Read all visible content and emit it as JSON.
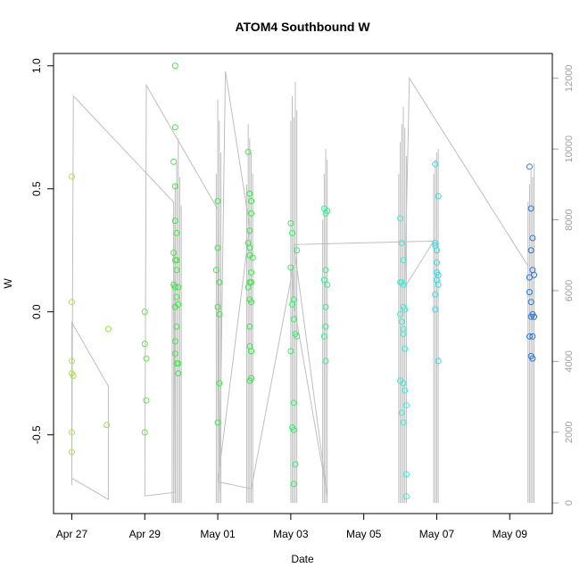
{
  "chart_data": {
    "type": "scatter",
    "title": "ATOM4 Southbound W",
    "xlabel": "Date",
    "ylabel": "W",
    "x_ticks": [
      {
        "date": "2016-04-27",
        "label": "Apr 27"
      },
      {
        "date": "2016-04-29",
        "label": "Apr 29"
      },
      {
        "date": "2016-05-01",
        "label": "May 01"
      },
      {
        "date": "2016-05-03",
        "label": "May 03"
      },
      {
        "date": "2016-05-05",
        "label": "May 05"
      },
      {
        "date": "2016-05-07",
        "label": "May 07"
      },
      {
        "date": "2016-05-09",
        "label": "May 09"
      }
    ],
    "xlim": [
      "2016-04-26 12:00",
      "2016-05-10 04:00"
    ],
    "y_ticks": [
      -0.5,
      0.0,
      0.5,
      1.0
    ],
    "y_tick_labels": [
      "-0.5",
      "0.0",
      "0.5",
      "1.0"
    ],
    "ylim": [
      -0.82,
      1.05
    ],
    "y2_ticks": [
      0,
      2000,
      4000,
      6000,
      8000,
      10000,
      12000
    ],
    "y2_tick_labels": [
      "0",
      "2000",
      "4000",
      "6000",
      "8000",
      "10000",
      "12000"
    ],
    "y2lim": [
      -300,
      12700
    ],
    "grid": false,
    "legend": "none",
    "colors": {
      "axis": "#000000",
      "secondary_axis": "#a0a0a0",
      "line": "#bebebe",
      "point_early": "#aee23c",
      "point_mid": "#3ce84a",
      "point_late": "#3cefe8",
      "point_end": "#2a74d8"
    },
    "points": [
      {
        "x": "2016-04-27 00:00",
        "y": 0.55
      },
      {
        "x": "2016-04-27 00:00",
        "y": 0.04
      },
      {
        "x": "2016-04-27 00:00",
        "y": -0.2
      },
      {
        "x": "2016-04-27 00:00",
        "y": -0.25
      },
      {
        "x": "2016-04-27 01:00",
        "y": -0.26
      },
      {
        "x": "2016-04-27 00:00",
        "y": -0.49
      },
      {
        "x": "2016-04-27 00:00",
        "y": -0.57
      },
      {
        "x": "2016-04-28 00:00",
        "y": -0.07
      },
      {
        "x": "2016-04-27 23:00",
        "y": -0.46
      },
      {
        "x": "2016-04-29 00:00",
        "y": 0.0
      },
      {
        "x": "2016-04-29 00:00",
        "y": -0.13
      },
      {
        "x": "2016-04-29 01:00",
        "y": -0.19
      },
      {
        "x": "2016-04-29 01:00",
        "y": -0.36
      },
      {
        "x": "2016-04-29 00:00",
        "y": -0.49
      },
      {
        "x": "2016-04-29 20:00",
        "y": 1.0
      },
      {
        "x": "2016-04-29 20:00",
        "y": 0.75
      },
      {
        "x": "2016-04-29 19:00",
        "y": 0.61
      },
      {
        "x": "2016-04-29 20:00",
        "y": 0.51
      },
      {
        "x": "2016-04-29 20:00",
        "y": 0.37
      },
      {
        "x": "2016-04-29 21:00",
        "y": 0.32
      },
      {
        "x": "2016-04-29 19:00",
        "y": 0.24
      },
      {
        "x": "2016-04-29 20:00",
        "y": 0.21
      },
      {
        "x": "2016-04-29 21:00",
        "y": 0.21
      },
      {
        "x": "2016-04-29 21:00",
        "y": 0.17
      },
      {
        "x": "2016-04-29 19:00",
        "y": 0.11
      },
      {
        "x": "2016-04-29 20:00",
        "y": 0.1
      },
      {
        "x": "2016-04-29 22:00",
        "y": 0.1
      },
      {
        "x": "2016-04-29 21:00",
        "y": 0.06
      },
      {
        "x": "2016-04-29 22:00",
        "y": 0.03
      },
      {
        "x": "2016-04-29 20:00",
        "y": 0.02
      },
      {
        "x": "2016-04-29 21:00",
        "y": -0.06
      },
      {
        "x": "2016-04-29 20:00",
        "y": -0.12
      },
      {
        "x": "2016-04-29 20:00",
        "y": -0.17
      },
      {
        "x": "2016-04-29 21:00",
        "y": -0.21
      },
      {
        "x": "2016-04-29 22:00",
        "y": -0.21
      },
      {
        "x": "2016-04-29 22:00",
        "y": -0.25
      },
      {
        "x": "2016-05-01 00:00",
        "y": 0.45
      },
      {
        "x": "2016-05-01 00:00",
        "y": 0.26
      },
      {
        "x": "2016-04-30 23:00",
        "y": 0.17
      },
      {
        "x": "2016-05-01 01:00",
        "y": 0.12
      },
      {
        "x": "2016-05-01 00:00",
        "y": 0.02
      },
      {
        "x": "2016-05-01 01:00",
        "y": -0.01
      },
      {
        "x": "2016-05-01 01:00",
        "y": -0.29
      },
      {
        "x": "2016-05-01 00:00",
        "y": -0.45
      },
      {
        "x": "2016-05-01 20:00",
        "y": 0.65
      },
      {
        "x": "2016-05-01 21:00",
        "y": 0.48
      },
      {
        "x": "2016-05-01 22:00",
        "y": 0.45
      },
      {
        "x": "2016-05-01 22:00",
        "y": 0.4
      },
      {
        "x": "2016-05-01 21:00",
        "y": 0.33
      },
      {
        "x": "2016-05-01 20:00",
        "y": 0.28
      },
      {
        "x": "2016-05-01 21:00",
        "y": 0.26
      },
      {
        "x": "2016-05-01 21:00",
        "y": 0.23
      },
      {
        "x": "2016-05-01 23:00",
        "y": 0.22
      },
      {
        "x": "2016-05-01 22:00",
        "y": 0.16
      },
      {
        "x": "2016-05-01 21:00",
        "y": 0.12
      },
      {
        "x": "2016-05-01 22:00",
        "y": 0.12
      },
      {
        "x": "2016-05-01 20:00",
        "y": 0.1
      },
      {
        "x": "2016-05-01 21:00",
        "y": 0.05
      },
      {
        "x": "2016-05-01 22:00",
        "y": 0.04
      },
      {
        "x": "2016-05-01 21:00",
        "y": -0.06
      },
      {
        "x": "2016-05-01 21:00",
        "y": -0.14
      },
      {
        "x": "2016-05-01 22:00",
        "y": -0.16
      },
      {
        "x": "2016-05-01 22:00",
        "y": -0.27
      },
      {
        "x": "2016-05-01 21:00",
        "y": -0.28
      },
      {
        "x": "2016-05-03 00:00",
        "y": 0.36
      },
      {
        "x": "2016-05-03 01:00",
        "y": 0.32
      },
      {
        "x": "2016-05-03 04:00",
        "y": 0.25
      },
      {
        "x": "2016-05-03 00:00",
        "y": 0.18
      },
      {
        "x": "2016-05-03 02:00",
        "y": 0.05
      },
      {
        "x": "2016-05-03 01:00",
        "y": 0.03
      },
      {
        "x": "2016-05-03 02:00",
        "y": -0.03
      },
      {
        "x": "2016-05-03 03:00",
        "y": -0.09
      },
      {
        "x": "2016-05-03 04:00",
        "y": -0.1
      },
      {
        "x": "2016-05-03 00:00",
        "y": -0.16
      },
      {
        "x": "2016-05-03 02:00",
        "y": -0.37
      },
      {
        "x": "2016-05-03 01:00",
        "y": -0.47
      },
      {
        "x": "2016-05-03 02:00",
        "y": -0.48
      },
      {
        "x": "2016-05-03 03:00",
        "y": -0.62
      },
      {
        "x": "2016-05-03 02:00",
        "y": -0.7
      },
      {
        "x": "2016-05-03 22:00",
        "y": 0.42
      },
      {
        "x": "2016-05-04 00:00",
        "y": 0.41
      },
      {
        "x": "2016-05-03 23:00",
        "y": 0.4
      },
      {
        "x": "2016-05-03 23:00",
        "y": 0.17
      },
      {
        "x": "2016-05-03 22:00",
        "y": 0.13
      },
      {
        "x": "2016-05-04 00:00",
        "y": 0.11
      },
      {
        "x": "2016-05-03 23:00",
        "y": 0.02
      },
      {
        "x": "2016-05-03 23:00",
        "y": -0.06
      },
      {
        "x": "2016-05-03 22:00",
        "y": -0.1
      },
      {
        "x": "2016-05-03 23:00",
        "y": -0.2
      },
      {
        "x": "2016-05-06 00:00",
        "y": 0.38
      },
      {
        "x": "2016-05-06 01:00",
        "y": 0.28
      },
      {
        "x": "2016-05-06 02:00",
        "y": 0.21
      },
      {
        "x": "2016-05-06 00:00",
        "y": 0.12
      },
      {
        "x": "2016-05-06 01:00",
        "y": 0.12
      },
      {
        "x": "2016-05-06 02:00",
        "y": 0.11
      },
      {
        "x": "2016-05-06 02:00",
        "y": 0.02
      },
      {
        "x": "2016-05-06 03:00",
        "y": 0.01
      },
      {
        "x": "2016-05-06 00:00",
        "y": -0.01
      },
      {
        "x": "2016-05-06 01:00",
        "y": -0.04
      },
      {
        "x": "2016-05-06 02:00",
        "y": -0.07
      },
      {
        "x": "2016-05-06 02:00",
        "y": -0.09
      },
      {
        "x": "2016-05-06 03:00",
        "y": -0.15
      },
      {
        "x": "2016-05-06 00:00",
        "y": -0.28
      },
      {
        "x": "2016-05-06 02:00",
        "y": -0.29
      },
      {
        "x": "2016-05-06 03:00",
        "y": -0.32
      },
      {
        "x": "2016-05-06 04:00",
        "y": -0.38
      },
      {
        "x": "2016-05-06 01:00",
        "y": -0.41
      },
      {
        "x": "2016-05-06 02:00",
        "y": -0.45
      },
      {
        "x": "2016-05-06 04:00",
        "y": -0.66
      },
      {
        "x": "2016-05-06 04:00",
        "y": -0.75
      },
      {
        "x": "2016-05-06 23:00",
        "y": 0.6
      },
      {
        "x": "2016-05-07 01:00",
        "y": 0.47
      },
      {
        "x": "2016-05-06 23:00",
        "y": 0.28
      },
      {
        "x": "2016-05-06 23:00",
        "y": 0.27
      },
      {
        "x": "2016-05-07 00:00",
        "y": 0.25
      },
      {
        "x": "2016-05-07 00:00",
        "y": 0.2
      },
      {
        "x": "2016-05-07 00:00",
        "y": 0.16
      },
      {
        "x": "2016-05-07 01:00",
        "y": 0.15
      },
      {
        "x": "2016-05-07 00:00",
        "y": 0.13
      },
      {
        "x": "2016-05-07 01:00",
        "y": 0.11
      },
      {
        "x": "2016-05-06 23:00",
        "y": 0.07
      },
      {
        "x": "2016-05-06 23:00",
        "y": 0.01
      },
      {
        "x": "2016-05-07 01:00",
        "y": -0.2
      },
      {
        "x": "2016-05-09 13:00",
        "y": 0.59
      },
      {
        "x": "2016-05-09 14:00",
        "y": 0.42
      },
      {
        "x": "2016-05-09 15:00",
        "y": 0.3
      },
      {
        "x": "2016-05-09 14:00",
        "y": 0.25
      },
      {
        "x": "2016-05-09 15:00",
        "y": 0.17
      },
      {
        "x": "2016-05-09 16:00",
        "y": 0.15
      },
      {
        "x": "2016-05-09 13:00",
        "y": 0.14
      },
      {
        "x": "2016-05-09 13:00",
        "y": 0.08
      },
      {
        "x": "2016-05-09 14:00",
        "y": 0.04
      },
      {
        "x": "2016-05-09 15:00",
        "y": -0.01
      },
      {
        "x": "2016-05-09 14:00",
        "y": -0.02
      },
      {
        "x": "2016-05-09 16:00",
        "y": -0.02
      },
      {
        "x": "2016-05-09 13:00",
        "y": -0.1
      },
      {
        "x": "2016-05-09 15:00",
        "y": -0.1
      },
      {
        "x": "2016-05-09 14:00",
        "y": -0.18
      },
      {
        "x": "2016-05-09 15:00",
        "y": -0.19
      }
    ],
    "line_series_y2": [
      {
        "x": "2016-04-27 00:00",
        "y": 500
      },
      {
        "x": "2016-04-27 00:00",
        "y": 5100
      },
      {
        "x": "2016-04-28 00:00",
        "y": 3300
      },
      {
        "x": "2016-04-28 00:00",
        "y": 100
      },
      {
        "x": "2016-04-27 00:00",
        "y": 700
      },
      {
        "x": "2016-04-27 01:00",
        "y": 11500
      },
      {
        "x": "2016-04-29 19:00",
        "y": 8500
      },
      {
        "x": "2016-04-29 20:00",
        "y": 300
      },
      {
        "x": "2016-04-29 00:00",
        "y": 200
      },
      {
        "x": "2016-04-29 01:00",
        "y": 11800
      },
      {
        "x": "2016-05-01 00:00",
        "y": 8300
      },
      {
        "x": "2016-05-01 01:00",
        "y": 300
      },
      {
        "x": "2016-05-01 05:00",
        "y": 12200
      },
      {
        "x": "2016-05-01 21:00",
        "y": 7800
      },
      {
        "x": "2016-05-01 00:00",
        "y": 600
      },
      {
        "x": "2016-05-01 22:00",
        "y": 400
      },
      {
        "x": "2016-05-03 00:00",
        "y": 6300
      },
      {
        "x": "2016-05-03 01:00",
        "y": 6700
      },
      {
        "x": "2016-05-03 02:00",
        "y": 5600
      },
      {
        "x": "2016-05-04 00:00",
        "y": 200
      },
      {
        "x": "2016-05-03 02:00",
        "y": 7300
      },
      {
        "x": "2016-05-06 22:00",
        "y": 7400
      },
      {
        "x": "2016-05-06 03:00",
        "y": 6100
      },
      {
        "x": "2016-05-06 06:00",
        "y": 12000
      },
      {
        "x": "2016-05-09 12:00",
        "y": 6700
      }
    ],
    "vertical_spikes_y2": [
      {
        "x": "2016-04-29 18:00",
        "top": 6200
      },
      {
        "x": "2016-04-29 19:00",
        "top": 8100
      },
      {
        "x": "2016-04-29 20:00",
        "top": 9000
      },
      {
        "x": "2016-04-29 21:00",
        "top": 9600
      },
      {
        "x": "2016-04-29 22:00",
        "top": 10300
      },
      {
        "x": "2016-04-29 23:00",
        "top": 9200
      },
      {
        "x": "2016-04-30 00:00",
        "top": 8400
      },
      {
        "x": "2016-04-30 23:00",
        "top": 9300
      },
      {
        "x": "2016-05-01 00:00",
        "top": 11400
      },
      {
        "x": "2016-05-01 01:00",
        "top": 10800
      },
      {
        "x": "2016-05-01 02:00",
        "top": 9900
      },
      {
        "x": "2016-05-01 19:00",
        "top": 9000
      },
      {
        "x": "2016-05-01 20:00",
        "top": 10700
      },
      {
        "x": "2016-05-01 21:00",
        "top": 10300
      },
      {
        "x": "2016-05-01 22:00",
        "top": 9900
      },
      {
        "x": "2016-05-01 23:00",
        "top": 9300
      },
      {
        "x": "2016-05-03 00:00",
        "top": 10800
      },
      {
        "x": "2016-05-03 01:00",
        "top": 11500
      },
      {
        "x": "2016-05-03 02:00",
        "top": 10900
      },
      {
        "x": "2016-05-03 03:00",
        "top": 11900
      },
      {
        "x": "2016-05-03 04:00",
        "top": 11100
      },
      {
        "x": "2016-05-03 21:00",
        "top": 8000
      },
      {
        "x": "2016-05-03 22:00",
        "top": 9300
      },
      {
        "x": "2016-05-03 23:00",
        "top": 10000
      },
      {
        "x": "2016-05-04 00:00",
        "top": 9700
      },
      {
        "x": "2016-05-05 23:00",
        "top": 9300
      },
      {
        "x": "2016-05-06 00:00",
        "top": 10200
      },
      {
        "x": "2016-05-06 01:00",
        "top": 10700
      },
      {
        "x": "2016-05-06 02:00",
        "top": 11200
      },
      {
        "x": "2016-05-06 03:00",
        "top": 10600
      },
      {
        "x": "2016-05-06 04:00",
        "top": 9800
      },
      {
        "x": "2016-05-06 22:00",
        "top": 9300
      },
      {
        "x": "2016-05-06 23:00",
        "top": 9700
      },
      {
        "x": "2016-05-07 00:00",
        "top": 9900
      },
      {
        "x": "2016-05-07 01:00",
        "top": 10000
      },
      {
        "x": "2016-05-09 12:00",
        "top": 8500
      },
      {
        "x": "2016-05-09 13:00",
        "top": 9000
      },
      {
        "x": "2016-05-09 14:00",
        "top": 9400
      },
      {
        "x": "2016-05-09 15:00",
        "top": 9200
      },
      {
        "x": "2016-05-09 16:00",
        "top": 9600
      }
    ]
  }
}
